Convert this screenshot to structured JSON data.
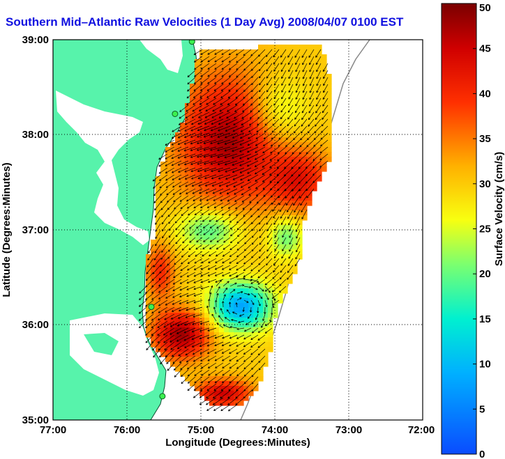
{
  "title": "Southern Mid–Atlantic Raw Velocities (1 Day Avg) 2008/04/07 0100 EST",
  "map": {
    "xlabel": "Longitude (Degrees:Minutes)",
    "ylabel": "Latitude (Degrees:Minutes)",
    "lon_range": [
      -77,
      -72
    ],
    "lat_range": [
      35,
      39
    ],
    "x_ticks": [
      "77:00",
      "76:00",
      "75:00",
      "74:00",
      "73:00",
      "72:00"
    ],
    "y_ticks": [
      "35:00",
      "36:00",
      "37:00",
      "38:00",
      "39:00"
    ],
    "grid": "dotted",
    "land_color": "#57f3ab",
    "water_color": "#ffffff"
  },
  "colorbar": {
    "label": "Surface Velocity (cm/s)",
    "min": 0,
    "max": 50,
    "ticks": [
      "0",
      "5",
      "10",
      "15",
      "20",
      "25",
      "30",
      "35",
      "40",
      "45",
      "50"
    ]
  },
  "stations": [
    {
      "lon": -75.12,
      "lat": 38.98
    },
    {
      "lon": -75.35,
      "lat": 38.22
    },
    {
      "lon": -75.67,
      "lat": 36.19
    },
    {
      "lon": -75.52,
      "lat": 35.25
    }
  ]
}
